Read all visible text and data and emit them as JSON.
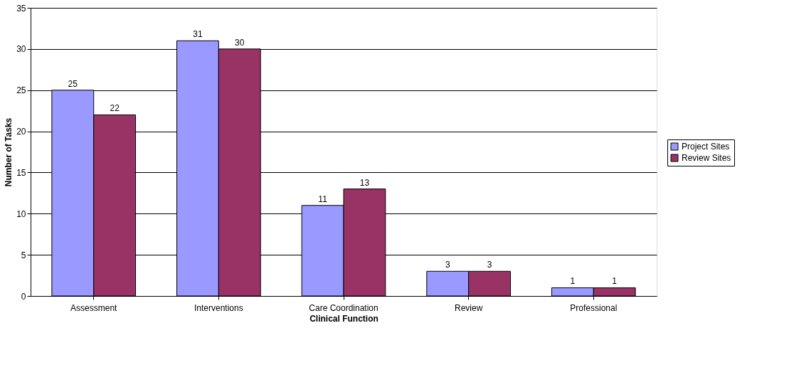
{
  "chart_data": {
    "type": "bar",
    "xlabel": "Clinical Function",
    "ylabel": "Number of Tasks",
    "categories": [
      "Assessment",
      "Interventions",
      "Care Coordination",
      "Review",
      "Professional"
    ],
    "series": [
      {
        "name": "Project Sites",
        "color": "#9999ff",
        "values": [
          25,
          31,
          11,
          3,
          1
        ]
      },
      {
        "name": "Review Sites",
        "color": "#993366",
        "values": [
          22,
          30,
          13,
          3,
          1
        ]
      }
    ],
    "ylim": [
      0,
      35
    ],
    "yticks": [
      0,
      5,
      10,
      15,
      20,
      25,
      30,
      35
    ],
    "grid": "y",
    "legend": "right",
    "data_labels": true
  }
}
